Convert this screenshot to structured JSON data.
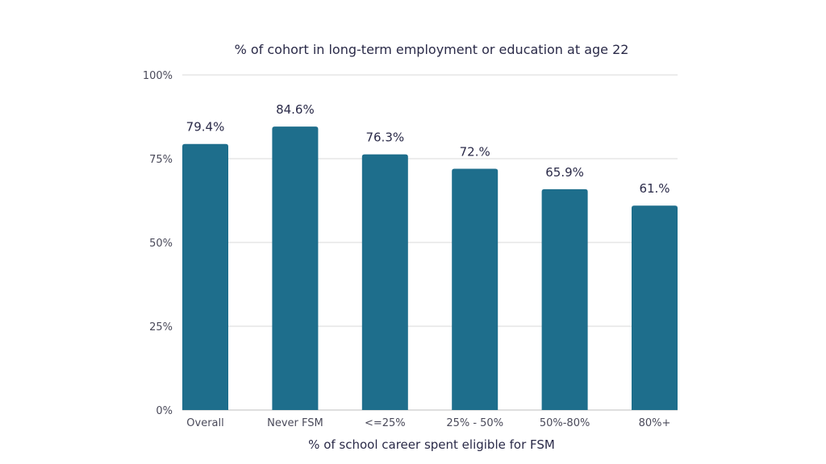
{
  "chart_data": {
    "type": "bar",
    "title": "% of cohort in long-term employment or education at age 22",
    "xlabel": "% of school career spent eligible for FSM",
    "ylabel": "",
    "categories": [
      "Overall",
      "Never FSM",
      "<=25%",
      "25% - 50%",
      "50%-80%",
      "80%+"
    ],
    "values": [
      79.4,
      84.6,
      76.3,
      72.0,
      65.9,
      61.0
    ],
    "data_labels": [
      "79.4%",
      "84.6%",
      "76.3%",
      "72.%",
      "65.9%",
      "61.%"
    ],
    "ylim": [
      0,
      100
    ],
    "yticks": [
      0,
      25,
      50,
      75,
      100
    ],
    "ytick_labels": [
      "0%",
      "25%",
      "50%",
      "75%",
      "100%"
    ],
    "grid": true,
    "legend": "none",
    "colors": {
      "bar": "#1e6e8c",
      "grid": "#d9d9d9",
      "text": "#2a2a48",
      "tick_text": "#4a4a5a",
      "axis_line": "#bfbfbf"
    }
  }
}
